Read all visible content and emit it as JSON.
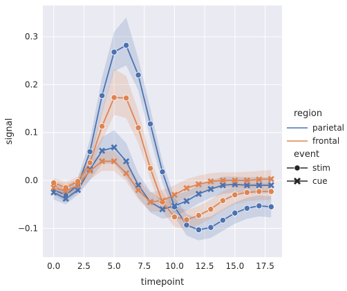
{
  "chart_data": {
    "type": "line",
    "xlabel": "timepoint",
    "ylabel": "signal",
    "xlim": [
      -0.9,
      18.9
    ],
    "ylim": [
      -0.16,
      0.365
    ],
    "xticks": [
      0,
      2.5,
      5,
      7.5,
      10,
      12.5,
      15,
      17.5
    ],
    "xtick_labels": [
      "0.0",
      "2.5",
      "5.0",
      "7.5",
      "10.0",
      "12.5",
      "15.0",
      "17.5"
    ],
    "yticks": [
      -0.1,
      0,
      0.1,
      0.2,
      0.3
    ],
    "ytick_labels": [
      "−0.1",
      "0.0",
      "0.1",
      "0.2",
      "0.3"
    ],
    "grid": true,
    "legend": {
      "placement": "right",
      "hue_title": "region",
      "hue_entries": [
        {
          "label": "parietal",
          "color": "#4c72b0"
        },
        {
          "label": "frontal",
          "color": "#dd8452"
        }
      ],
      "style_title": "event",
      "style_entries": [
        {
          "label": "stim",
          "marker": "circle"
        },
        {
          "label": "cue",
          "marker": "x"
        }
      ]
    },
    "x": [
      0,
      1,
      2,
      3,
      4,
      5,
      6,
      7,
      8,
      9,
      10,
      11,
      12,
      13,
      14,
      15,
      16,
      17,
      18
    ],
    "series": [
      {
        "region": "parietal",
        "event": "stim",
        "color": "#4c72b0",
        "marker": "circle",
        "values": [
          -0.02,
          -0.03,
          -0.01,
          0.06,
          0.177,
          0.268,
          0.282,
          0.22,
          0.118,
          0.018,
          -0.055,
          -0.093,
          -0.103,
          -0.098,
          -0.083,
          -0.068,
          -0.058,
          -0.053,
          -0.055
        ],
        "ci_low": [
          -0.03,
          -0.045,
          -0.025,
          0.035,
          0.14,
          0.228,
          0.24,
          0.188,
          0.088,
          -0.005,
          -0.075,
          -0.115,
          -0.125,
          -0.12,
          -0.105,
          -0.09,
          -0.08,
          -0.075,
          -0.077
        ],
        "ci_high": [
          -0.01,
          -0.015,
          0.005,
          0.085,
          0.215,
          0.31,
          0.34,
          0.255,
          0.15,
          0.04,
          -0.035,
          -0.07,
          -0.08,
          -0.075,
          -0.06,
          -0.046,
          -0.036,
          -0.031,
          -0.033
        ]
      },
      {
        "region": "parietal",
        "event": "cue",
        "color": "#4c72b0",
        "marker": "x",
        "values": [
          -0.025,
          -0.038,
          -0.02,
          0.023,
          0.062,
          0.069,
          0.04,
          -0.01,
          -0.045,
          -0.06,
          -0.053,
          -0.043,
          -0.028,
          -0.018,
          -0.01,
          -0.008,
          -0.01,
          -0.01,
          -0.01
        ],
        "ci_low": [
          -0.04,
          -0.05,
          -0.03,
          0.0,
          0.035,
          0.035,
          0.005,
          -0.035,
          -0.067,
          -0.08,
          -0.075,
          -0.063,
          -0.048,
          -0.036,
          -0.028,
          -0.025,
          -0.027,
          -0.027,
          -0.027
        ],
        "ci_high": [
          -0.01,
          -0.025,
          -0.01,
          0.045,
          0.09,
          0.105,
          0.078,
          0.015,
          -0.023,
          -0.04,
          -0.03,
          -0.023,
          -0.01,
          0.0,
          0.008,
          0.008,
          0.007,
          0.007,
          0.007
        ]
      },
      {
        "region": "frontal",
        "event": "stim",
        "color": "#dd8452",
        "marker": "circle",
        "values": [
          -0.005,
          -0.015,
          -0.002,
          0.037,
          0.113,
          0.173,
          0.172,
          0.11,
          0.025,
          -0.045,
          -0.076,
          -0.082,
          -0.073,
          -0.06,
          -0.042,
          -0.03,
          -0.025,
          -0.023,
          -0.023
        ],
        "ci_low": [
          -0.015,
          -0.027,
          -0.012,
          0.02,
          0.083,
          0.137,
          0.13,
          0.078,
          0.002,
          -0.065,
          -0.097,
          -0.102,
          -0.093,
          -0.08,
          -0.062,
          -0.05,
          -0.043,
          -0.041,
          -0.041
        ],
        "ci_high": [
          0.005,
          -0.003,
          0.008,
          0.055,
          0.145,
          0.233,
          0.218,
          0.145,
          0.05,
          -0.025,
          -0.055,
          -0.062,
          -0.053,
          -0.04,
          -0.022,
          -0.012,
          -0.007,
          -0.005,
          -0.005
        ]
      },
      {
        "region": "frontal",
        "event": "cue",
        "color": "#dd8452",
        "marker": "x",
        "values": [
          -0.015,
          -0.022,
          -0.01,
          0.02,
          0.04,
          0.04,
          0.015,
          -0.02,
          -0.045,
          -0.042,
          -0.03,
          -0.016,
          -0.008,
          -0.002,
          0.0,
          0.0,
          0.0,
          0.002,
          0.003
        ],
        "ci_low": [
          -0.03,
          -0.035,
          -0.022,
          0.002,
          0.02,
          0.02,
          -0.002,
          -0.04,
          -0.065,
          -0.065,
          -0.05,
          -0.035,
          -0.025,
          -0.018,
          -0.015,
          -0.015,
          -0.015,
          -0.013,
          -0.012
        ],
        "ci_high": [
          0.0,
          -0.008,
          0.003,
          0.038,
          0.06,
          0.062,
          0.035,
          0.0,
          -0.025,
          -0.02,
          -0.01,
          0.003,
          0.01,
          0.015,
          0.017,
          0.017,
          0.018,
          0.02,
          0.022
        ]
      }
    ]
  }
}
